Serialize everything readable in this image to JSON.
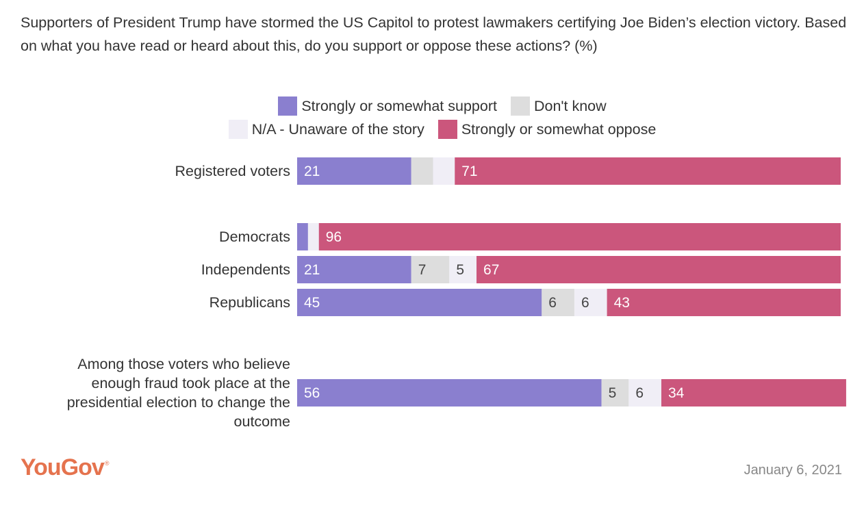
{
  "chart_data": {
    "type": "bar",
    "orientation": "horizontal",
    "stacked": true,
    "title": "Supporters of President Trump have stormed the US Capitol to protest lawmakers certifying Joe Biden’s election victory. Based on what you have read or heard about this, do you support or oppose these actions? (%)",
    "categories": [
      "Registered voters",
      "Democrats",
      "Independents",
      "Republicans",
      "Among those voters who believe enough fraud took place at the presidential election to change the outcome"
    ],
    "series": [
      {
        "name": "Strongly or somewhat support",
        "color": "#8a7fcf",
        "label_color": "#ffffff",
        "values": [
          21,
          2,
          21,
          45,
          56
        ]
      },
      {
        "name": "Don't know",
        "color": "#dddddd",
        "label_color": "#444444",
        "values": [
          4,
          0,
          7,
          6,
          5
        ]
      },
      {
        "name": "N/A - Unaware of the story",
        "color": "#f0eef6",
        "label_color": "#444444",
        "values": [
          4,
          2,
          5,
          6,
          6
        ]
      },
      {
        "name": "Strongly or somewhat oppose",
        "color": "#cb567c",
        "label_color": "#ffffff",
        "values": [
          71,
          96,
          67,
          43,
          34
        ]
      }
    ],
    "data_labels": [
      [
        "21",
        "",
        "",
        "71"
      ],
      [
        "",
        "",
        "",
        "96"
      ],
      [
        "21",
        "7",
        "5",
        "67"
      ],
      [
        "45",
        "6",
        "6",
        "43"
      ],
      [
        "56",
        "5",
        "6",
        "34"
      ]
    ],
    "legend_rows": [
      [
        0,
        1
      ],
      [
        2,
        3
      ]
    ],
    "legend_position": "top",
    "xlim": [
      0,
      100
    ],
    "grid": false
  },
  "footer": {
    "logo": "YouGov",
    "date": "January 6, 2021"
  }
}
